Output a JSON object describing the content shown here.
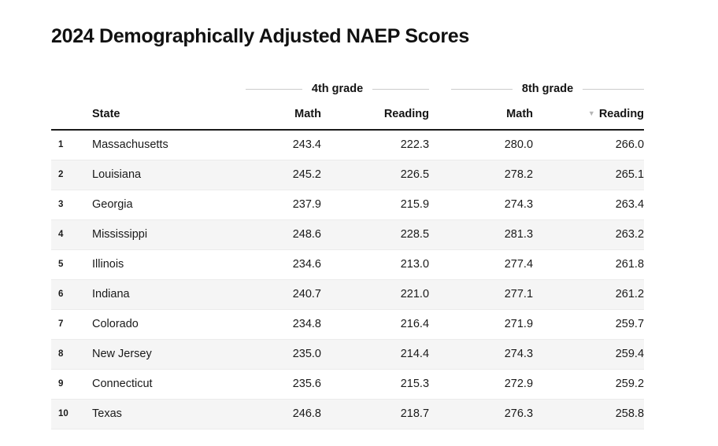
{
  "chart_data": {
    "type": "table",
    "title": "2024 Demographically Adjusted NAEP Scores",
    "column_groups": [
      {
        "label": "4th grade",
        "columns": [
          "Math",
          "Reading"
        ]
      },
      {
        "label": "8th grade",
        "columns": [
          "Math",
          "Reading"
        ]
      }
    ],
    "columns": {
      "rank": "",
      "state": "State",
      "g4_math": "Math",
      "g4_reading": "Reading",
      "g8_math": "Math",
      "g8_reading": "Reading"
    },
    "sort": {
      "column": "8th grade Reading",
      "direction": "descending",
      "icon": "▼"
    },
    "rows": [
      {
        "rank": 1,
        "state": "Massachusetts",
        "g4_math": 243.4,
        "g4_reading": 222.3,
        "g8_math": 280.0,
        "g8_reading": 266.0
      },
      {
        "rank": 2,
        "state": "Louisiana",
        "g4_math": 245.2,
        "g4_reading": 226.5,
        "g8_math": 278.2,
        "g8_reading": 265.1
      },
      {
        "rank": 3,
        "state": "Georgia",
        "g4_math": 237.9,
        "g4_reading": 215.9,
        "g8_math": 274.3,
        "g8_reading": 263.4
      },
      {
        "rank": 4,
        "state": "Mississippi",
        "g4_math": 248.6,
        "g4_reading": 228.5,
        "g8_math": 281.3,
        "g8_reading": 263.2
      },
      {
        "rank": 5,
        "state": "Illinois",
        "g4_math": 234.6,
        "g4_reading": 213.0,
        "g8_math": 277.4,
        "g8_reading": 261.8
      },
      {
        "rank": 6,
        "state": "Indiana",
        "g4_math": 240.7,
        "g4_reading": 221.0,
        "g8_math": 277.1,
        "g8_reading": 261.2
      },
      {
        "rank": 7,
        "state": "Colorado",
        "g4_math": 234.8,
        "g4_reading": 216.4,
        "g8_math": 271.9,
        "g8_reading": 259.7
      },
      {
        "rank": 8,
        "state": "New Jersey",
        "g4_math": 235.0,
        "g4_reading": 214.4,
        "g8_math": 274.3,
        "g8_reading": 259.4
      },
      {
        "rank": 9,
        "state": "Connecticut",
        "g4_math": 235.6,
        "g4_reading": 215.3,
        "g8_math": 272.9,
        "g8_reading": 259.2
      },
      {
        "rank": 10,
        "state": "Texas",
        "g4_math": 246.8,
        "g4_reading": 218.7,
        "g8_math": 276.3,
        "g8_reading": 258.8
      }
    ],
    "layout": {
      "zebra_striping": true,
      "numeric_precision": 1
    }
  },
  "colors": {
    "title_text": "#111111",
    "body_text": "#1a1a1a",
    "stripe": "#f5f5f5",
    "header_rule": "#1a1a1a",
    "row_rule": "#ebebeb",
    "group_line": "#cccccc",
    "sort_icon": "#b5b5b5",
    "background": "#ffffff"
  }
}
